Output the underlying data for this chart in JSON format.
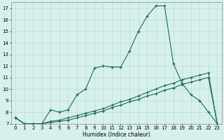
{
  "xlabel": "Humidex (Indice chaleur)",
  "bg_color": "#d8f0ec",
  "line_color": "#1a6b5e",
  "grid_color": "#b0d8d0",
  "xlim": [
    -0.5,
    23.5
  ],
  "ylim": [
    7,
    17.5
  ],
  "xticks": [
    0,
    1,
    2,
    3,
    4,
    5,
    6,
    7,
    8,
    9,
    10,
    11,
    12,
    13,
    14,
    15,
    16,
    17,
    18,
    19,
    20,
    21,
    22,
    23
  ],
  "yticks": [
    7,
    8,
    9,
    10,
    11,
    12,
    13,
    14,
    15,
    16,
    17
  ],
  "line1_x": [
    0,
    1,
    2,
    3,
    4,
    5,
    6,
    7,
    8,
    9,
    10,
    11,
    12,
    13,
    14,
    15,
    16,
    17,
    18,
    19,
    20,
    21,
    22,
    23
  ],
  "line1_y": [
    7.5,
    7.0,
    7.0,
    7.0,
    8.2,
    8.0,
    8.2,
    9.5,
    10.0,
    11.8,
    12.0,
    11.9,
    11.9,
    13.3,
    15.0,
    16.3,
    17.2,
    17.2,
    12.2,
    10.5,
    9.5,
    9.0,
    8.0,
    7.0
  ],
  "line2_x": [
    0,
    1,
    2,
    3,
    4,
    5,
    6,
    7,
    8,
    9,
    10,
    11,
    12,
    13,
    14,
    15,
    16,
    17,
    18,
    19,
    20,
    21,
    22,
    23
  ],
  "line2_y": [
    7.5,
    7.0,
    7.0,
    7.0,
    7.2,
    7.3,
    7.5,
    7.7,
    7.9,
    8.1,
    8.3,
    8.6,
    8.9,
    9.1,
    9.4,
    9.7,
    10.0,
    10.3,
    10.5,
    10.8,
    11.0,
    11.2,
    11.4,
    7.0
  ],
  "line3_x": [
    0,
    1,
    2,
    3,
    4,
    5,
    6,
    7,
    8,
    9,
    10,
    11,
    12,
    13,
    14,
    15,
    16,
    17,
    18,
    19,
    20,
    21,
    22,
    23
  ],
  "line3_y": [
    7.5,
    7.0,
    7.0,
    7.0,
    7.1,
    7.2,
    7.3,
    7.5,
    7.7,
    7.9,
    8.1,
    8.4,
    8.6,
    8.9,
    9.1,
    9.4,
    9.6,
    9.9,
    10.1,
    10.4,
    10.6,
    10.8,
    11.0,
    7.0
  ]
}
